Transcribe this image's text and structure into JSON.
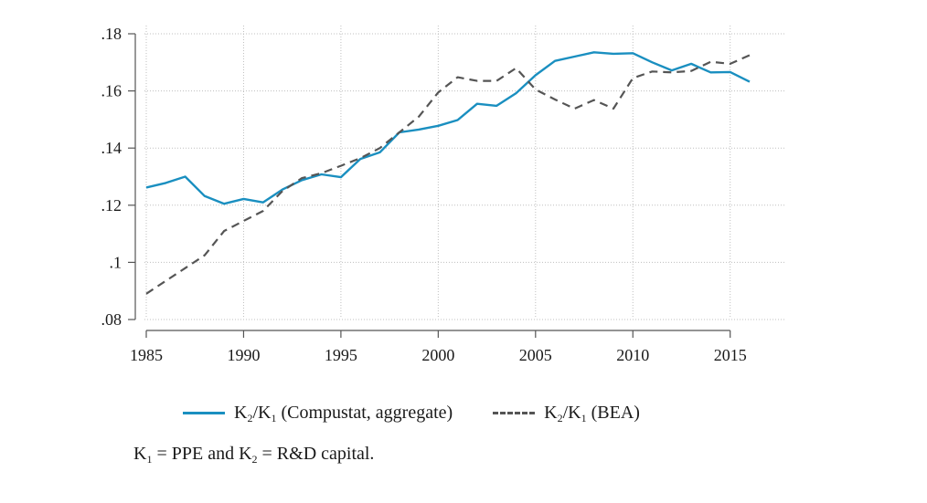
{
  "chart_data": {
    "type": "line",
    "x": [
      1985,
      1986,
      1987,
      1988,
      1989,
      1990,
      1991,
      1992,
      1993,
      1994,
      1995,
      1996,
      1997,
      1998,
      1999,
      2000,
      2001,
      2002,
      2003,
      2004,
      2005,
      2006,
      2007,
      2008,
      2009,
      2010,
      2011,
      2012,
      2013,
      2014,
      2015,
      2016
    ],
    "series": [
      {
        "name": "K2/K1 (Compustat, aggregate)",
        "color": "#1a8fc0",
        "style": "solid",
        "values": [
          0.1262,
          0.1278,
          0.13,
          0.1232,
          0.1205,
          0.1222,
          0.121,
          0.1255,
          0.1288,
          0.1308,
          0.1298,
          0.1362,
          0.1385,
          0.1455,
          0.1465,
          0.1478,
          0.1498,
          0.1555,
          0.1548,
          0.1592,
          0.1655,
          0.1705,
          0.172,
          0.1735,
          0.173,
          0.1732,
          0.17,
          0.1672,
          0.1695,
          0.1665,
          0.1666,
          0.1632
        ]
      },
      {
        "name": "K2/K1 (BEA)",
        "color": "#555555",
        "style": "dashed",
        "values": [
          0.089,
          0.0935,
          0.098,
          0.1025,
          0.111,
          0.1145,
          0.118,
          0.125,
          0.1295,
          0.1312,
          0.1338,
          0.1365,
          0.14,
          0.1455,
          0.151,
          0.1595,
          0.1648,
          0.1635,
          0.1635,
          0.168,
          0.1605,
          0.157,
          0.1538,
          0.1568,
          0.1538,
          0.1645,
          0.1668,
          0.1665,
          0.167,
          0.1702,
          0.1695,
          0.1725
        ]
      }
    ],
    "xticks": [
      1985,
      1990,
      1995,
      2000,
      2005,
      2010,
      2015
    ],
    "xtick_labels": [
      "1985",
      "1990",
      "1995",
      "2000",
      "2005",
      "2010",
      "2015"
    ],
    "yticks": [
      0.08,
      0.1,
      0.12,
      0.14,
      0.16,
      0.18
    ],
    "ytick_labels": [
      ".08",
      ".1",
      ".12",
      ".14",
      ".16",
      ".18"
    ],
    "xlim": [
      1985,
      2016
    ],
    "ylim": [
      0.08,
      0.18
    ],
    "grid": true,
    "legend_position": "bottom"
  },
  "legend": {
    "compustat": {
      "pre": "K",
      "sub1": "2",
      "mid": "/K",
      "sub2": "1",
      "post": " (Compustat, aggregate)"
    },
    "bea": {
      "pre": "K",
      "sub1": "2",
      "mid": "/K",
      "sub2": "1",
      "post": " (BEA)"
    }
  },
  "note": {
    "a": "K",
    "a_sub": "1",
    "b": " = PPE and K",
    "b_sub": "2",
    "c": " = R&D capital."
  }
}
